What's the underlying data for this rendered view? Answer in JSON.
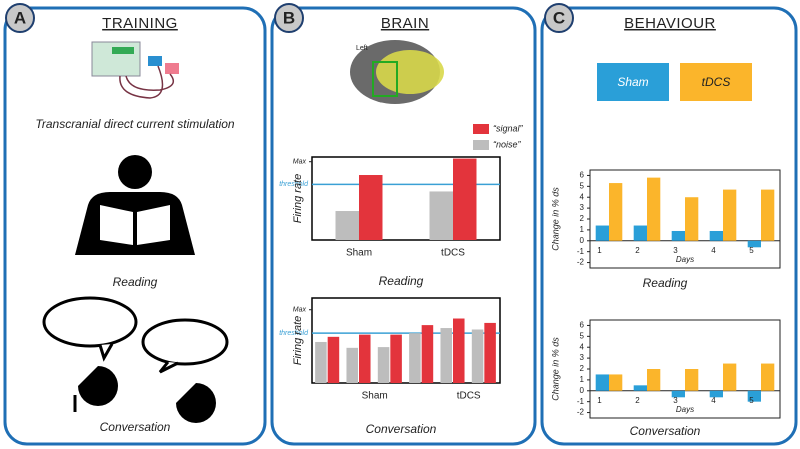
{
  "panels": [
    {
      "letter": "A",
      "title": "TRAINING",
      "captions": [
        "Transcranial direct current stimulation",
        "Reading",
        "Conversation"
      ]
    },
    {
      "letter": "B",
      "title": "BRAIN",
      "brain_label": "Left",
      "charts": [
        {
          "type": "bar",
          "title": "Reading",
          "y_label": "Firing rate",
          "categories": [
            "Sham",
            "tDCS"
          ],
          "series": [
            {
              "name": "“noise”",
              "color": "#bdbdbd",
              "values": [
                0.37,
                0.62
              ]
            },
            {
              "name": "“signal”",
              "color": "#e3343c",
              "values": [
                0.83,
                1.04
              ]
            }
          ],
          "ylim": [
            0,
            1.06
          ],
          "yticks": [
            {
              "value": 1,
              "label": "Max"
            }
          ],
          "reference_line": {
            "value": 0.71,
            "label": "threshold",
            "color": "#3aa0d5"
          }
        },
        {
          "type": "bar",
          "title": "Conversation",
          "y_label": "Firing rate",
          "categories": [
            null,
            "Sham",
            null,
            null,
            "tDCS",
            null
          ],
          "series": [
            {
              "name": "“noise”",
              "color": "#bdbdbd",
              "values": [
                0.56,
                0.48,
                0.49,
                0.68,
                0.75,
                0.73
              ]
            },
            {
              "name": "“signal”",
              "color": "#e3343c",
              "values": [
                0.63,
                0.66,
                0.66,
                0.79,
                0.88,
                0.82
              ]
            }
          ],
          "ylim": [
            0,
            1.16
          ],
          "yticks": [
            {
              "value": 1,
              "label": "Max"
            }
          ],
          "reference_line": {
            "value": 0.68,
            "label": "threshold",
            "color": "#3aa0d5"
          }
        }
      ]
    },
    {
      "letter": "C",
      "title": "BEHAVIOUR",
      "charts": [
        {
          "type": "bar",
          "title": "Reading",
          "y_label": "Change in % ds",
          "x_label": "Days",
          "categories": [
            "1",
            "2",
            "3",
            "4",
            "5"
          ],
          "series": [
            {
              "name": "Sham",
              "color": "#2a9fd8",
              "values": [
                1.4,
                1.4,
                0.9,
                0.9,
                -0.6
              ]
            },
            {
              "name": "tDCS",
              "color": "#fbb52b",
              "values": [
                5.3,
                5.8,
                4.0,
                4.7,
                4.7
              ]
            }
          ],
          "ylim": [
            -2.5,
            6.5
          ],
          "yticks": [
            -2,
            -1,
            0,
            1,
            2,
            3,
            4,
            5,
            6
          ]
        },
        {
          "type": "bar",
          "title": "Conversation",
          "y_label": "Change in % ds",
          "x_label": "Days",
          "categories": [
            "1",
            "2",
            "3",
            "4",
            "5"
          ],
          "series": [
            {
              "name": "Sham",
              "color": "#2a9fd8",
              "values": [
                1.5,
                0.5,
                -0.6,
                -0.6,
                -1.0
              ]
            },
            {
              "name": "tDCS",
              "color": "#fbb52b",
              "values": [
                1.5,
                2.0,
                2.0,
                2.5,
                2.5
              ]
            }
          ],
          "ylim": [
            -2.5,
            6.5
          ],
          "yticks": [
            -2,
            -1,
            0,
            1,
            2,
            3,
            4,
            5,
            6
          ]
        }
      ]
    }
  ]
}
